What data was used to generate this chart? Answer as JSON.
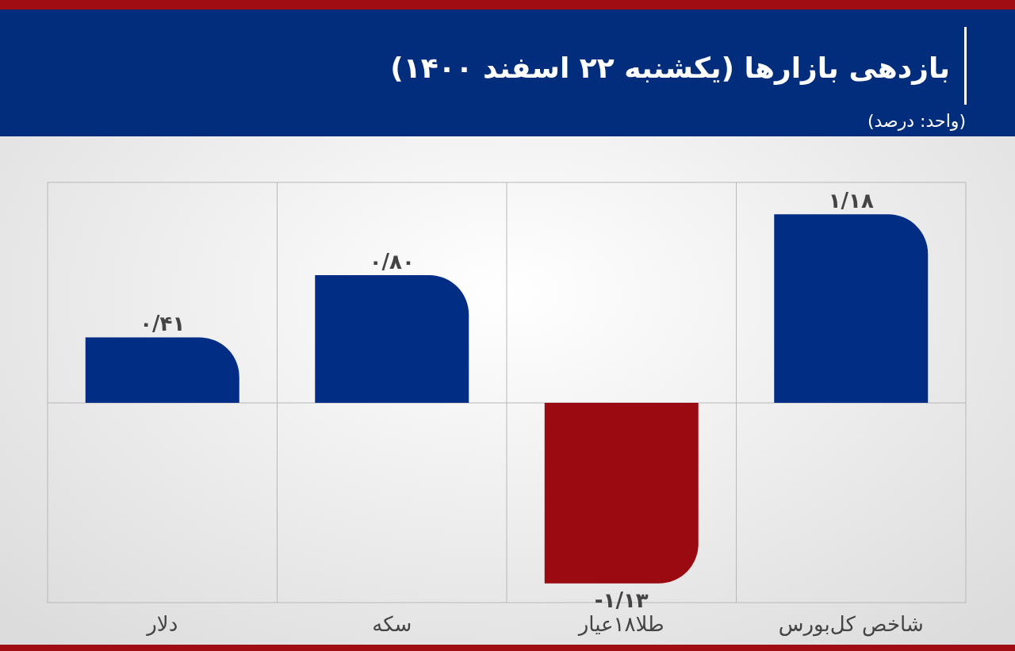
{
  "chart_data": {
    "type": "bar",
    "title": "بازدهی بازارها (یکشنبه ۲۲ اسفند ۱۴۰۰)",
    "subtitle": "(واحد: درصد)",
    "categories": [
      "دلار",
      "سکه",
      "طلا۱۸عیار",
      "شاخص کل‌بورس"
    ],
    "values": [
      0.41,
      0.8,
      -1.13,
      1.18
    ],
    "colors": [
      "#012d85",
      "#012d85",
      "#9b0a10",
      "#012d85"
    ],
    "value_labels": [
      "۰/۴۱",
      "۰/۸۰",
      "-۱/۱۳",
      "۱/۱۸"
    ]
  }
}
